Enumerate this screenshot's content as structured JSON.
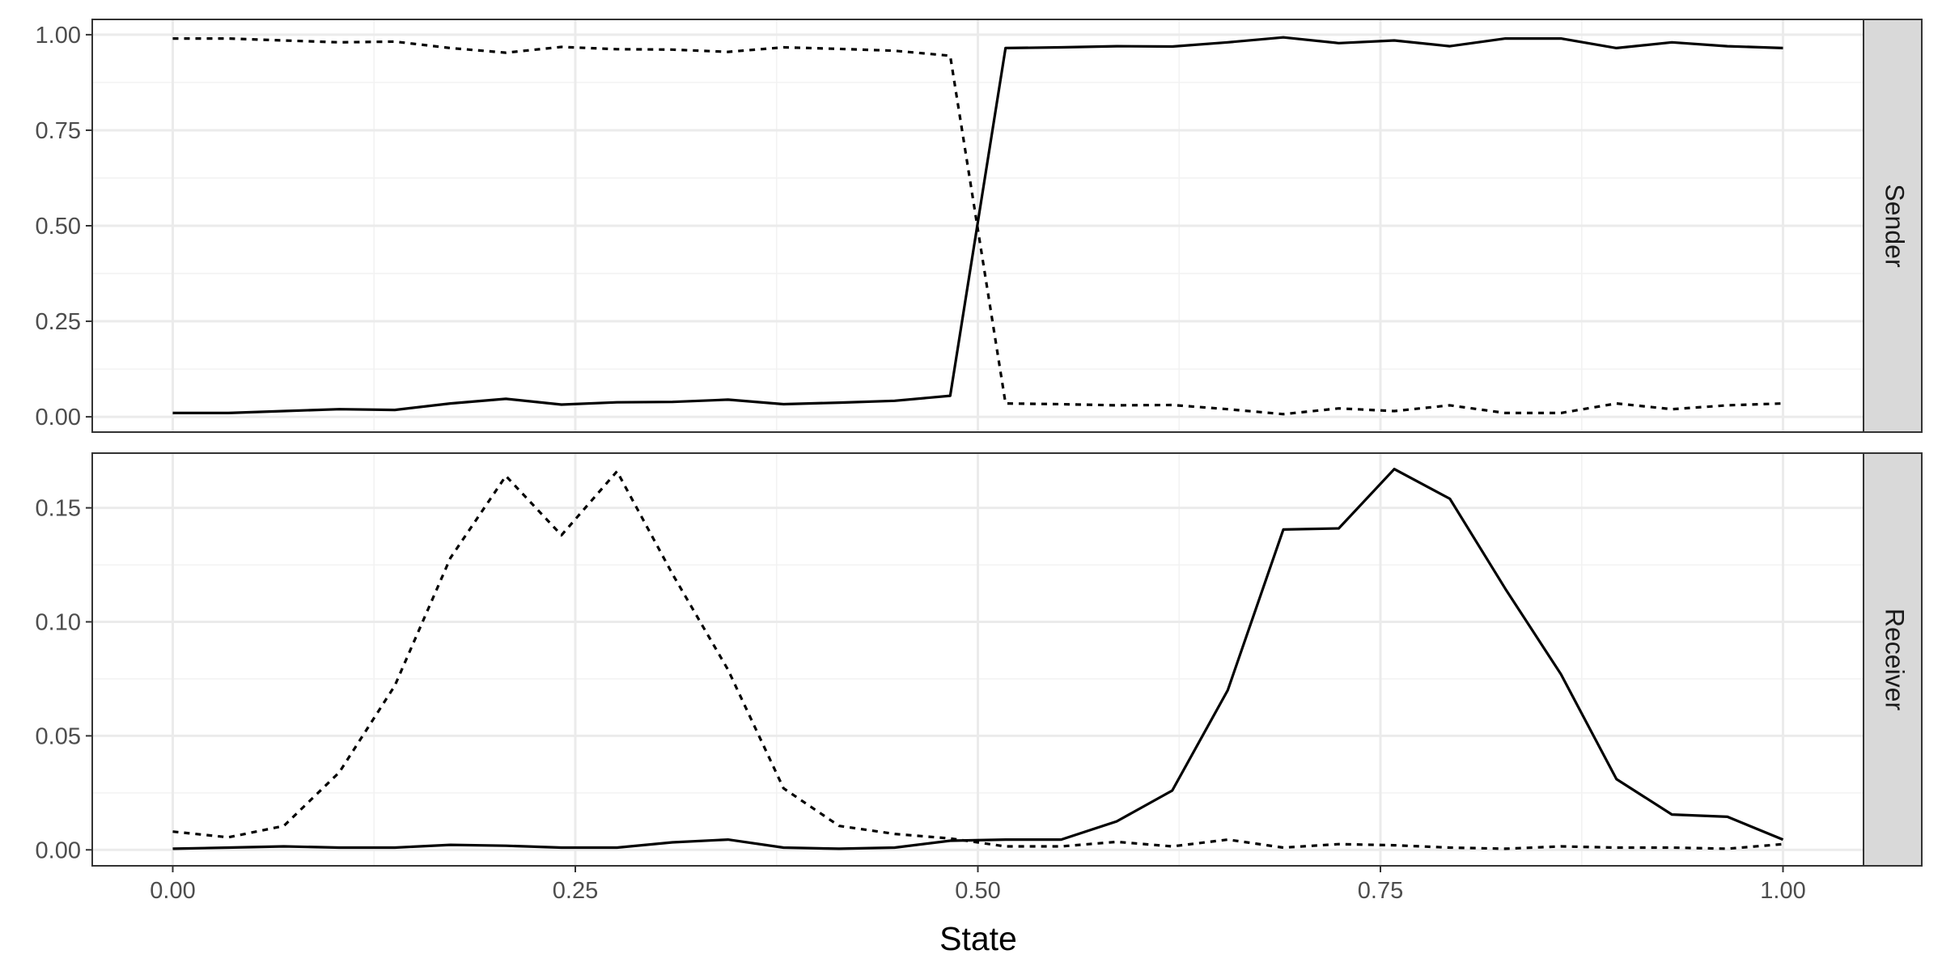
{
  "chart_data": [
    {
      "type": "line",
      "panel": "Sender",
      "xlabel": "State",
      "ylabel": "",
      "xlim": [
        -0.05,
        1.05
      ],
      "ylim": [
        -0.04,
        1.04
      ],
      "x_ticks": [
        "0.00",
        "0.25",
        "0.50",
        "0.75",
        "1.00"
      ],
      "y_ticks": [
        "0.00",
        "0.25",
        "0.50",
        "0.75",
        "1.00"
      ],
      "grid": true,
      "x": [
        0.0,
        0.0345,
        0.069,
        0.1034,
        0.1379,
        0.1724,
        0.2069,
        0.2414,
        0.2759,
        0.3103,
        0.3448,
        0.3793,
        0.4138,
        0.4483,
        0.4828,
        0.5172,
        0.5517,
        0.5862,
        0.6207,
        0.6552,
        0.6897,
        0.7241,
        0.7586,
        0.7931,
        0.8276,
        0.8621,
        0.8966,
        0.931,
        0.9655,
        1.0
      ],
      "series": [
        {
          "style": "solid",
          "values": [
            0.01,
            0.01,
            0.015,
            0.02,
            0.018,
            0.035,
            0.047,
            0.032,
            0.038,
            0.039,
            0.045,
            0.033,
            0.037,
            0.042,
            0.055,
            0.965,
            0.967,
            0.97,
            0.969,
            0.98,
            0.993,
            0.978,
            0.985,
            0.97,
            0.99,
            0.99,
            0.965,
            0.98,
            0.97,
            0.965
          ]
        },
        {
          "style": "dashed",
          "values": [
            0.99,
            0.99,
            0.985,
            0.98,
            0.982,
            0.965,
            0.953,
            0.968,
            0.962,
            0.961,
            0.955,
            0.967,
            0.963,
            0.958,
            0.945,
            0.035,
            0.033,
            0.03,
            0.031,
            0.02,
            0.007,
            0.022,
            0.015,
            0.03,
            0.01,
            0.01,
            0.035,
            0.02,
            0.03,
            0.035
          ]
        }
      ]
    },
    {
      "type": "line",
      "panel": "Receiver",
      "xlabel": "State",
      "ylabel": "",
      "xlim": [
        -0.05,
        1.05
      ],
      "ylim": [
        -0.007,
        0.174
      ],
      "x_ticks": [
        "0.00",
        "0.25",
        "0.50",
        "0.75",
        "1.00"
      ],
      "y_ticks": [
        "0.00",
        "0.05",
        "0.10",
        "0.15"
      ],
      "grid": true,
      "x": [
        0.0,
        0.0345,
        0.069,
        0.1034,
        0.1379,
        0.1724,
        0.2069,
        0.2414,
        0.2759,
        0.3103,
        0.3448,
        0.3793,
        0.4138,
        0.4483,
        0.4828,
        0.5172,
        0.5517,
        0.5862,
        0.6207,
        0.6552,
        0.6897,
        0.7241,
        0.7586,
        0.7931,
        0.8276,
        0.8621,
        0.8966,
        0.931,
        0.9655,
        1.0
      ],
      "series": [
        {
          "style": "solid",
          "values": [
            0.0005,
            0.001,
            0.0015,
            0.001,
            0.001,
            0.0022,
            0.0018,
            0.001,
            0.001,
            0.0033,
            0.0045,
            0.001,
            0.0005,
            0.001,
            0.004,
            0.0045,
            0.0045,
            0.0125,
            0.026,
            0.07,
            0.1405,
            0.141,
            0.167,
            0.154,
            0.1145,
            0.077,
            0.031,
            0.0155,
            0.0145,
            0.0045
          ]
        },
        {
          "style": "dashed",
          "values": [
            0.008,
            0.0055,
            0.0105,
            0.034,
            0.072,
            0.128,
            0.164,
            0.138,
            0.166,
            0.121,
            0.079,
            0.027,
            0.0105,
            0.007,
            0.005,
            0.0015,
            0.0015,
            0.0035,
            0.0015,
            0.0045,
            0.001,
            0.0025,
            0.002,
            0.001,
            0.0005,
            0.0015,
            0.001,
            0.001,
            0.0005,
            0.0025
          ]
        }
      ]
    }
  ]
}
